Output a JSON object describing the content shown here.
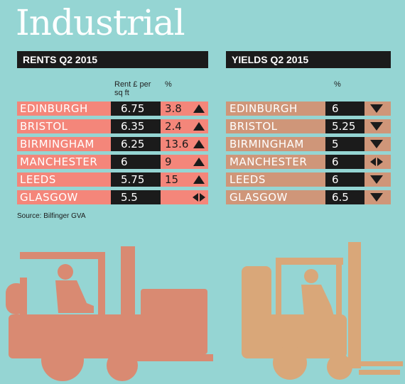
{
  "title": "Industrial",
  "rents": {
    "heading": "RENTS Q2 2015",
    "col_rent": "Rent £ per sq ft",
    "col_pct": "%",
    "rows": [
      {
        "city": "EDINBURGH",
        "value": "6.75",
        "pct": "3.8",
        "trend": "up"
      },
      {
        "city": "BRISTOL",
        "value": "6.35",
        "pct": "2.4",
        "trend": "up"
      },
      {
        "city": "BIRMINGHAM",
        "value": "6.25",
        "pct": "13.6",
        "trend": "up"
      },
      {
        "city": "MANCHESTER",
        "value": "6",
        "pct": "9",
        "trend": "up"
      },
      {
        "city": "LEEDS",
        "value": "5.75",
        "pct": "15",
        "trend": "up"
      },
      {
        "city": "GLASGOW",
        "value": "5.5",
        "pct": "",
        "trend": "flat"
      }
    ]
  },
  "yields": {
    "heading": "YIELDS Q2 2015",
    "col_pct": "%",
    "rows": [
      {
        "city": "EDINBURGH",
        "value": "6",
        "trend": "down"
      },
      {
        "city": "BRISTOL",
        "value": "5.25",
        "trend": "down"
      },
      {
        "city": "BIRMINGHAM",
        "value": "5",
        "trend": "down"
      },
      {
        "city": "MANCHESTER",
        "value": "6",
        "trend": "flat"
      },
      {
        "city": "LEEDS",
        "value": "6",
        "trend": "down"
      },
      {
        "city": "GLASGOW",
        "value": "6.5",
        "trend": "down"
      }
    ]
  },
  "source": "Source: Bilfinger GVA",
  "colors": {
    "background": "#95d5d3",
    "rents_row": "#f4867a",
    "yields_row": "#cf9679",
    "forklift_left": "#d98a72",
    "forklift_right": "#d9a779",
    "dark": "#1b1b1b"
  }
}
